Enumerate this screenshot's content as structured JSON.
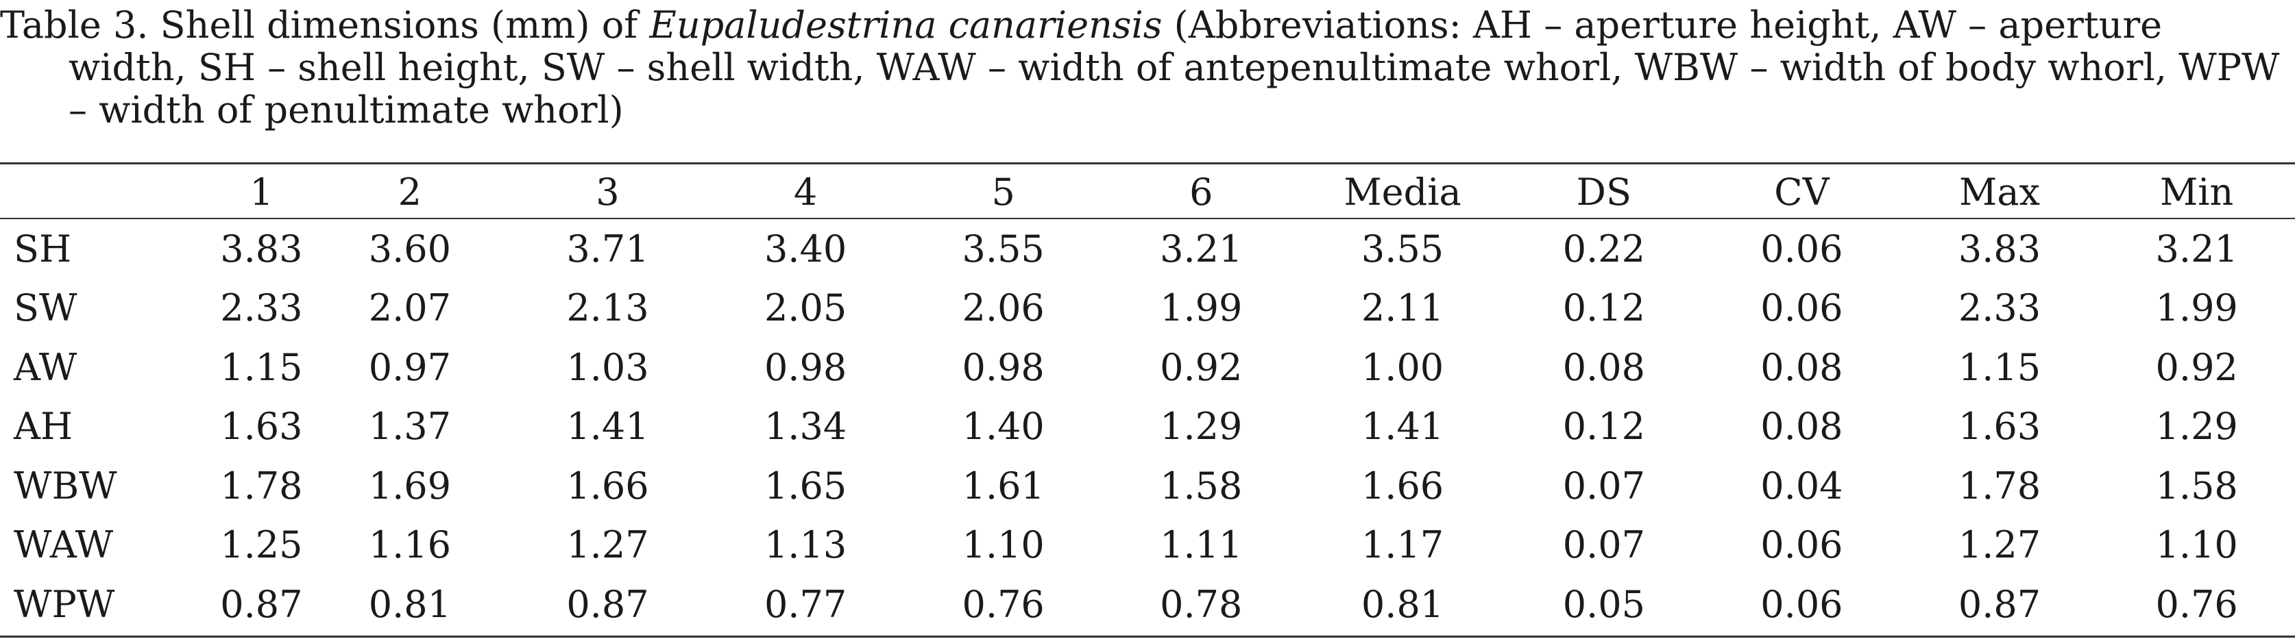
{
  "caption": {
    "prefix": "Table 3. Shell dimensions (mm) of ",
    "species": "Eupaludestrina canariensis",
    "suffix": " (Abbreviations: AH – aperture height, AW – aperture width, SH – shell height, SW – shell width, WAW – width of antepenultimate whorl, WBW – width of body whorl, WPW – width of penultimate whorl)"
  },
  "table": {
    "headers": [
      "",
      "1",
      "2",
      "3",
      "4",
      "5",
      "6",
      "Media",
      "DS",
      "CV",
      "Max",
      "Min"
    ],
    "rows": [
      [
        "SH",
        "3.83",
        "3.60",
        "3.71",
        "3.40",
        "3.55",
        "3.21",
        "3.55",
        "0.22",
        "0.06",
        "3.83",
        "3.21"
      ],
      [
        "SW",
        "2.33",
        "2.07",
        "2.13",
        "2.05",
        "2.06",
        "1.99",
        "2.11",
        "0.12",
        "0.06",
        "2.33",
        "1.99"
      ],
      [
        "AW",
        "1.15",
        "0.97",
        "1.03",
        "0.98",
        "0.98",
        "0.92",
        "1.00",
        "0.08",
        "0.08",
        "1.15",
        "0.92"
      ],
      [
        "AH",
        "1.63",
        "1.37",
        "1.41",
        "1.34",
        "1.40",
        "1.29",
        "1.41",
        "0.12",
        "0.08",
        "1.63",
        "1.29"
      ],
      [
        "WBW",
        "1.78",
        "1.69",
        "1.66",
        "1.65",
        "1.61",
        "1.58",
        "1.66",
        "0.07",
        "0.04",
        "1.78",
        "1.58"
      ],
      [
        "WAW",
        "1.25",
        "1.16",
        "1.27",
        "1.13",
        "1.10",
        "1.11",
        "1.17",
        "0.07",
        "0.06",
        "1.27",
        "1.10"
      ],
      [
        "WPW",
        "0.87",
        "0.81",
        "0.87",
        "0.77",
        "0.76",
        "0.78",
        "0.81",
        "0.05",
        "0.06",
        "0.87",
        "0.76"
      ]
    ]
  }
}
